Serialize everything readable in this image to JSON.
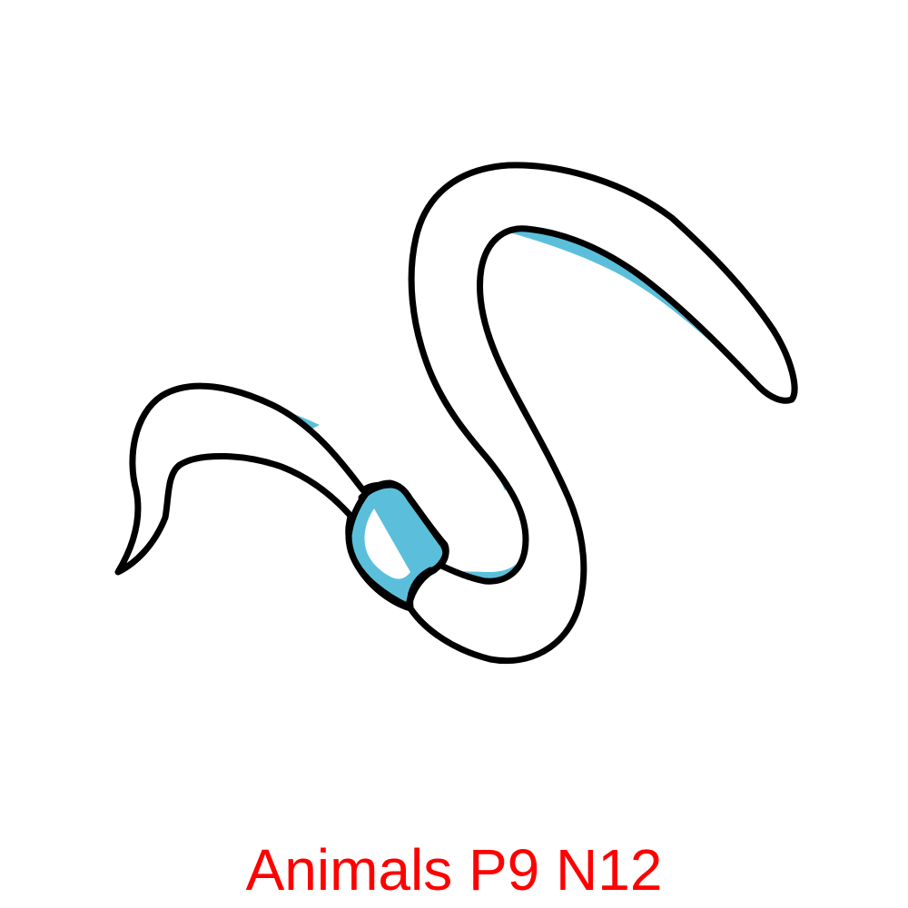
{
  "caption": {
    "text": "Animals P9 N12",
    "color": "#ff0000"
  },
  "illustration": {
    "subject": "worm-icon",
    "outline_color": "#000000",
    "body_color": "#ffffff",
    "shade_color": "#5bbfdb"
  }
}
